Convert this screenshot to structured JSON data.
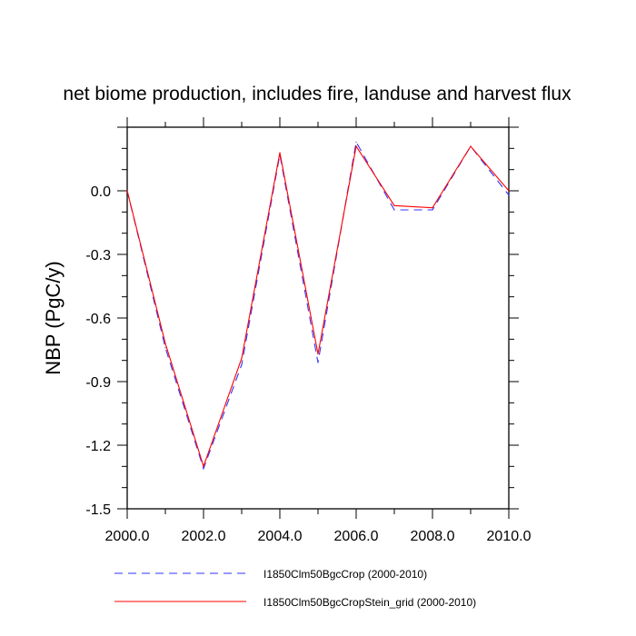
{
  "chart_data": {
    "type": "line",
    "title": "net biome production, includes fire, landuse and harvest flux",
    "ylabel": "NBP  (PgC/y)",
    "xlabel": "",
    "xlim": [
      2000,
      2010
    ],
    "ylim": [
      -1.5,
      0.3
    ],
    "x_ticks": [
      2000,
      2002,
      2004,
      2006,
      2008,
      2010
    ],
    "x_tick_labels": [
      "2000.0",
      "2002.0",
      "2004.0",
      "2006.0",
      "2008.0",
      "2010.0"
    ],
    "y_ticks": [
      0.0,
      -0.3,
      -0.6,
      -0.9,
      -1.2,
      -1.5
    ],
    "y_tick_labels": [
      "0.0",
      "-0.3",
      "-0.6",
      "-0.9",
      "-1.2",
      "-1.5"
    ],
    "x": [
      2000,
      2001,
      2002,
      2003,
      2004,
      2005,
      2006,
      2007,
      2008,
      2009,
      2010
    ],
    "series": [
      {
        "name": "I1850Clm50BgcCrop (2000-2010)",
        "color": "#3333ff",
        "dash": "dashed",
        "values": [
          0.0,
          -0.74,
          -1.31,
          -0.82,
          0.17,
          -0.81,
          0.23,
          -0.09,
          -0.09,
          0.21,
          -0.02
        ]
      },
      {
        "name": "I1850Clm50BgcCropStein_grid (2000-2010)",
        "color": "#ff0000",
        "dash": "solid",
        "values": [
          0.0,
          -0.72,
          -1.3,
          -0.79,
          0.18,
          -0.77,
          0.21,
          -0.07,
          -0.08,
          0.21,
          0.0
        ]
      }
    ],
    "legend_position": "bottom",
    "grid": false
  }
}
